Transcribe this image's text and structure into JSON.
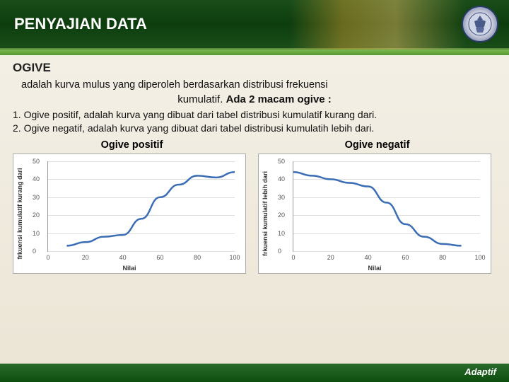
{
  "header": {
    "title": "PENYAJIAN DATA"
  },
  "section": {
    "subtitle": "OGIVE",
    "definition": "adalah kurva mulus yang diperoleh berdasarkan distribusi frekuensi",
    "definition_line2_prefix": "kumulatif.",
    "macam_label": "Ada 2 macam ogive :",
    "item1": "1.        Ogive positif, adalah kurva yang dibuat dari tabel distribusi kumulatif kurang dari.",
    "item2": "2.        Ogive negatif, adalah kurva yang dibuat dari tabel distribusi kumulatih lebih dari."
  },
  "charts": {
    "left": {
      "title": "Ogive positif",
      "type": "line",
      "xlabel": "Nilai",
      "ylabel": "frkuensi kumulatif kurang dari",
      "xlim": [
        0,
        100
      ],
      "ylim": [
        0,
        50
      ],
      "xticks": [
        0,
        20,
        40,
        60,
        80,
        100
      ],
      "yticks": [
        0,
        10,
        20,
        30,
        40,
        50
      ],
      "line_color": "#3a6db5",
      "line_width": 2.5,
      "grid_color": "#dddddd",
      "background_color": "#ffffff",
      "points": [
        {
          "x": 10,
          "y": 3
        },
        {
          "x": 20,
          "y": 5
        },
        {
          "x": 30,
          "y": 8
        },
        {
          "x": 40,
          "y": 9
        },
        {
          "x": 50,
          "y": 18
        },
        {
          "x": 60,
          "y": 30
        },
        {
          "x": 70,
          "y": 37
        },
        {
          "x": 80,
          "y": 42
        },
        {
          "x": 90,
          "y": 41
        },
        {
          "x": 100,
          "y": 44
        }
      ]
    },
    "right": {
      "title": "Ogive negatif",
      "type": "line",
      "xlabel": "Nilai",
      "ylabel": "frkuensi kumulatif lebih dari",
      "xlim": [
        0,
        100
      ],
      "ylim": [
        0,
        50
      ],
      "xticks": [
        0,
        20,
        40,
        60,
        80,
        100
      ],
      "yticks": [
        0,
        10,
        20,
        30,
        40,
        50
      ],
      "line_color": "#3a6db5",
      "line_width": 2.5,
      "grid_color": "#dddddd",
      "background_color": "#ffffff",
      "points": [
        {
          "x": 0,
          "y": 44
        },
        {
          "x": 10,
          "y": 42
        },
        {
          "x": 20,
          "y": 40
        },
        {
          "x": 30,
          "y": 38
        },
        {
          "x": 40,
          "y": 36
        },
        {
          "x": 50,
          "y": 27
        },
        {
          "x": 60,
          "y": 15
        },
        {
          "x": 70,
          "y": 8
        },
        {
          "x": 80,
          "y": 4
        },
        {
          "x": 90,
          "y": 3
        }
      ]
    }
  },
  "footer": {
    "text": "Adaptif"
  },
  "colors": {
    "header_bg": "#1a4d1a",
    "accent_green": "#5a9834",
    "footer_bg": "#0d4d0d",
    "page_bg": "#f5f1e8"
  }
}
